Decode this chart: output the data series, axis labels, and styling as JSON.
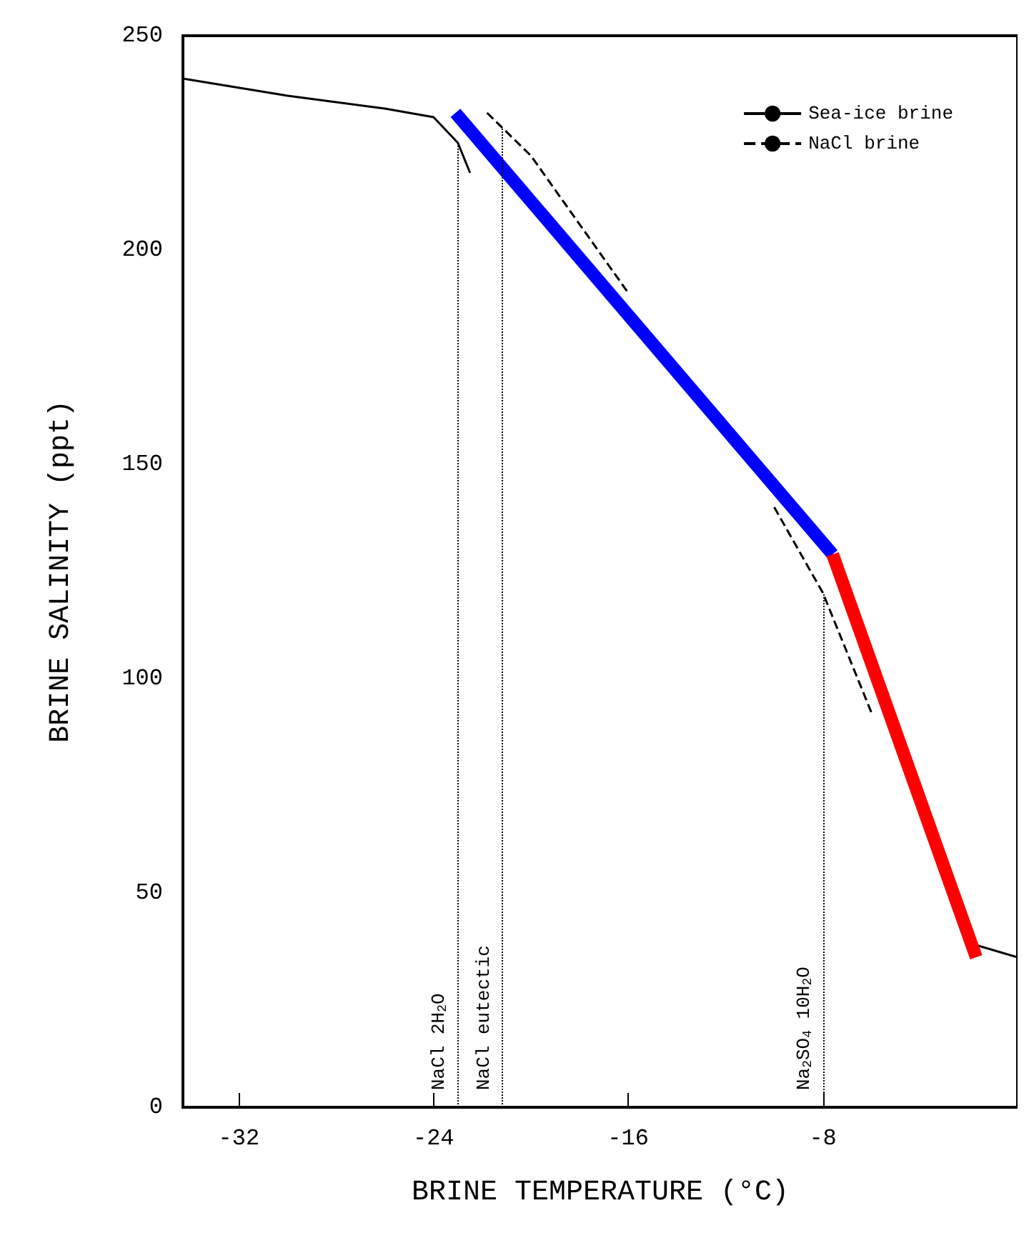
{
  "chart_data": {
    "type": "line",
    "xlabel": "BRINE TEMPERATURE (°C)",
    "ylabel": "BRINE SALINITY (ppt)",
    "xlim": [
      -34.3,
      0
    ],
    "xticks": [
      -32,
      -24,
      -16,
      -8
    ],
    "ylim": [
      0,
      250
    ],
    "yticks": [
      0,
      50,
      100,
      150,
      200,
      250
    ],
    "grid": false,
    "legend": "top right",
    "marker": "none",
    "series": [
      {
        "name": "Sea-ice brine",
        "color": "#000000",
        "line_style": "solid",
        "x": [
          -34.3,
          -30,
          -26,
          -24,
          -23,
          -22.5,
          -16,
          -12,
          -10,
          -8,
          -6,
          -4,
          -1.8,
          0
        ],
        "values": [
          240,
          236,
          233,
          231,
          225,
          218,
          null,
          null,
          null,
          null,
          null,
          null,
          38,
          35
        ]
      },
      {
        "name": "NaCl brine",
        "color": "#000000",
        "line_style": "dashed",
        "x": [
          -21.8,
          -20,
          -16,
          -12,
          -10,
          -8,
          -6
        ],
        "values": [
          232,
          222,
          190,
          null,
          140,
          120,
          92
        ]
      },
      {
        "color": "#0000ff",
        "line_style": "solid",
        "x": [
          -23.1,
          -7.6
        ],
        "values": [
          232,
          129
        ]
      },
      {
        "color": "#ff0000",
        "line_style": "solid",
        "x": [
          -7.6,
          -1.7
        ],
        "values": [
          129,
          35
        ]
      }
    ],
    "ref_lines": [
      {
        "axis": "x",
        "value": -23,
        "label": "NaCl 2H$_{2}$O",
        "line_style": "dotted"
      },
      {
        "axis": "x",
        "value": -21.2,
        "label": "NaCl eutectic",
        "line_style": "dotted"
      },
      {
        "axis": "x",
        "value": -8,
        "label": "Na$_{2}$SO$_{4}$ 10H$_{2}$O",
        "line_style": "dotted"
      }
    ]
  }
}
